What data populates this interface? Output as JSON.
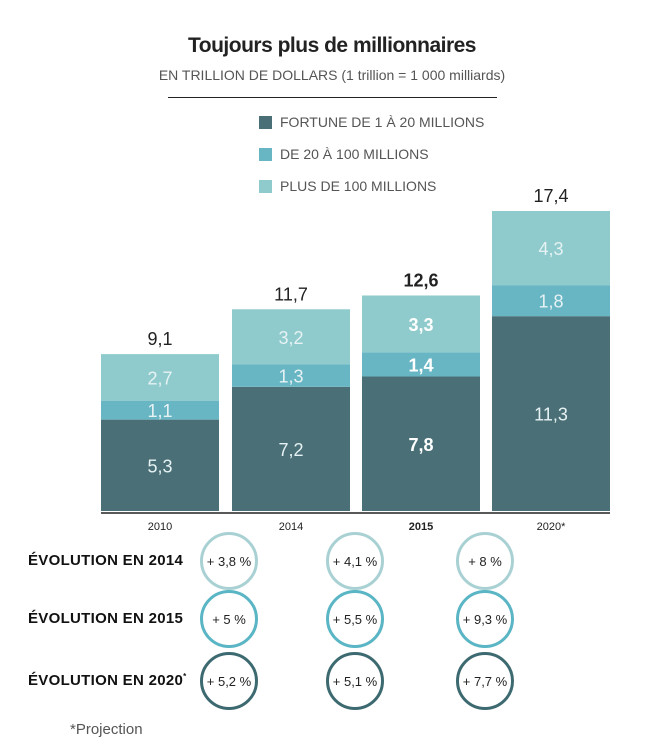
{
  "chart_data": {
    "type": "bar",
    "stacked": true,
    "title": "Toujours plus de millionnaires",
    "subtitle": "EN TRILLION DE DOLLARS (1 trillion = 1 000 milliards)",
    "categories": [
      "2010",
      "2014",
      "2015",
      "2020*"
    ],
    "highlight_category": "2015",
    "series": [
      {
        "name": "FORTUNE DE 1 À 20 MILLIONS",
        "color": "#4a6f76",
        "values": [
          5.3,
          7.2,
          7.8,
          11.3
        ],
        "labels": [
          "5,3",
          "7,2",
          "7,8",
          "11,3"
        ]
      },
      {
        "name": "DE 20 À 100 MILLIONS",
        "color": "#68b5c4",
        "values": [
          1.1,
          1.3,
          1.4,
          1.8
        ],
        "labels": [
          "1,1",
          "1,3",
          "1,4",
          "1,8"
        ]
      },
      {
        "name": "PLUS DE 100 MILLIONS",
        "color": "#8fcbcc",
        "values": [
          2.7,
          3.2,
          3.3,
          4.3
        ],
        "labels": [
          "2,7",
          "3,2",
          "3,3",
          "4,3"
        ]
      }
    ],
    "totals": [
      9.1,
      11.7,
      12.6,
      17.4
    ],
    "total_labels": [
      "9,1",
      "11,7",
      "12,6",
      "17,4"
    ],
    "legend_position": "top",
    "grid": false
  },
  "evolution": {
    "rows": [
      {
        "label": "ÉVOLUTION EN 2014",
        "sup": "",
        "color": "#a9d1d3",
        "values": [
          "+ 3,8 %",
          "+ 4,1 %",
          "+ 8 %"
        ]
      },
      {
        "label": "ÉVOLUTION EN 2015",
        "sup": "",
        "color": "#5ab5c4",
        "values": [
          "+ 5 %",
          "+ 5,5 %",
          "+ 9,3 %"
        ]
      },
      {
        "label": "ÉVOLUTION EN 2020",
        "sup": "*",
        "color": "#3d6a70",
        "values": [
          "+ 5,2 %",
          "+ 5,1 %",
          "+ 7,7 %"
        ]
      }
    ]
  },
  "footnote": "*Projection"
}
